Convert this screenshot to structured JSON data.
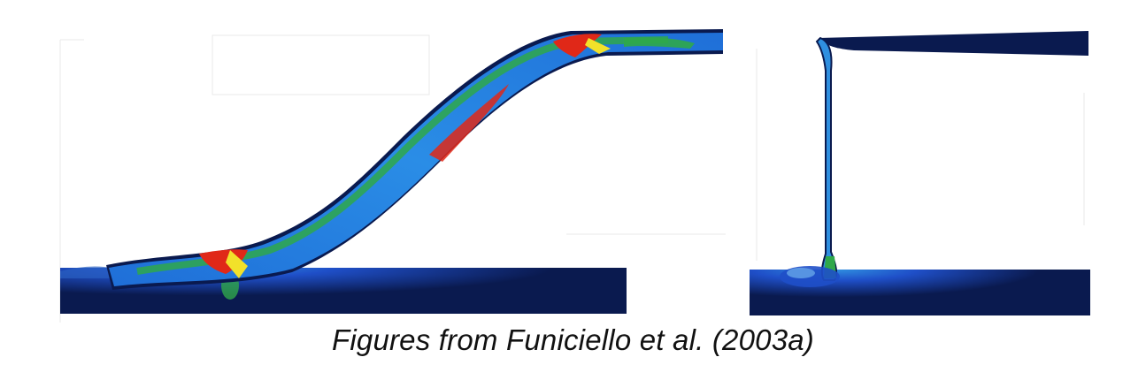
{
  "caption": "Figures from Funiciello et al. (2003a)",
  "colors": {
    "deep_navy": "#0a1a4f",
    "blue": "#1f4fc8",
    "cyan_blue": "#2f8fe0",
    "green": "#2fa84a",
    "yellow": "#f2e12a",
    "red": "#e02818"
  }
}
